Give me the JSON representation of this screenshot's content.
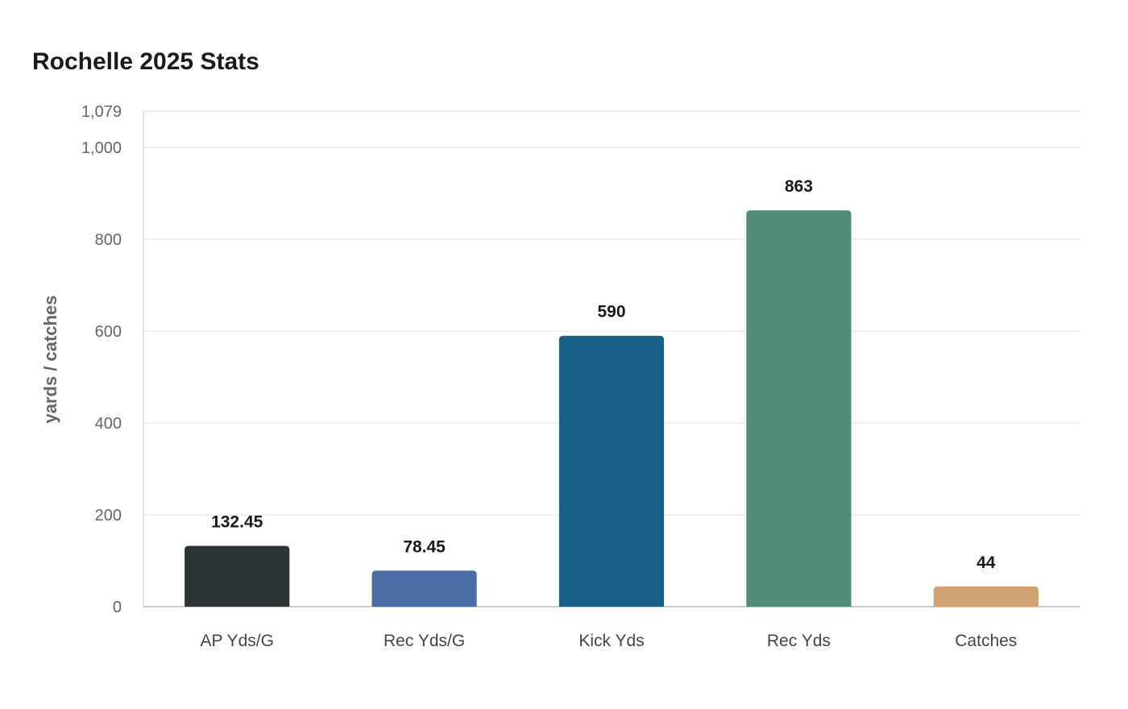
{
  "chart_data": {
    "type": "bar",
    "title": "Rochelle 2025 Stats",
    "xlabel": "",
    "ylabel": "yards / catches",
    "categories": [
      "AP Yds/G",
      "Rec Yds/G",
      "Kick Yds",
      "Rec Yds",
      "Catches"
    ],
    "values": [
      132.45,
      78.45,
      590,
      863,
      44
    ],
    "value_labels": [
      "132.45",
      "78.45",
      "590",
      "863",
      "44"
    ],
    "colors": [
      "#2d3436",
      "#4a6ea3",
      "#186087",
      "#4f8d7b",
      "#d1a372"
    ],
    "ylim": [
      0,
      1079
    ],
    "yticks": [
      0,
      200,
      400,
      600,
      800,
      1000,
      1079
    ],
    "ytick_labels": [
      "0",
      "200",
      "400",
      "600",
      "800",
      "1,000",
      "1,079"
    ],
    "grid": true,
    "legend": "none"
  }
}
